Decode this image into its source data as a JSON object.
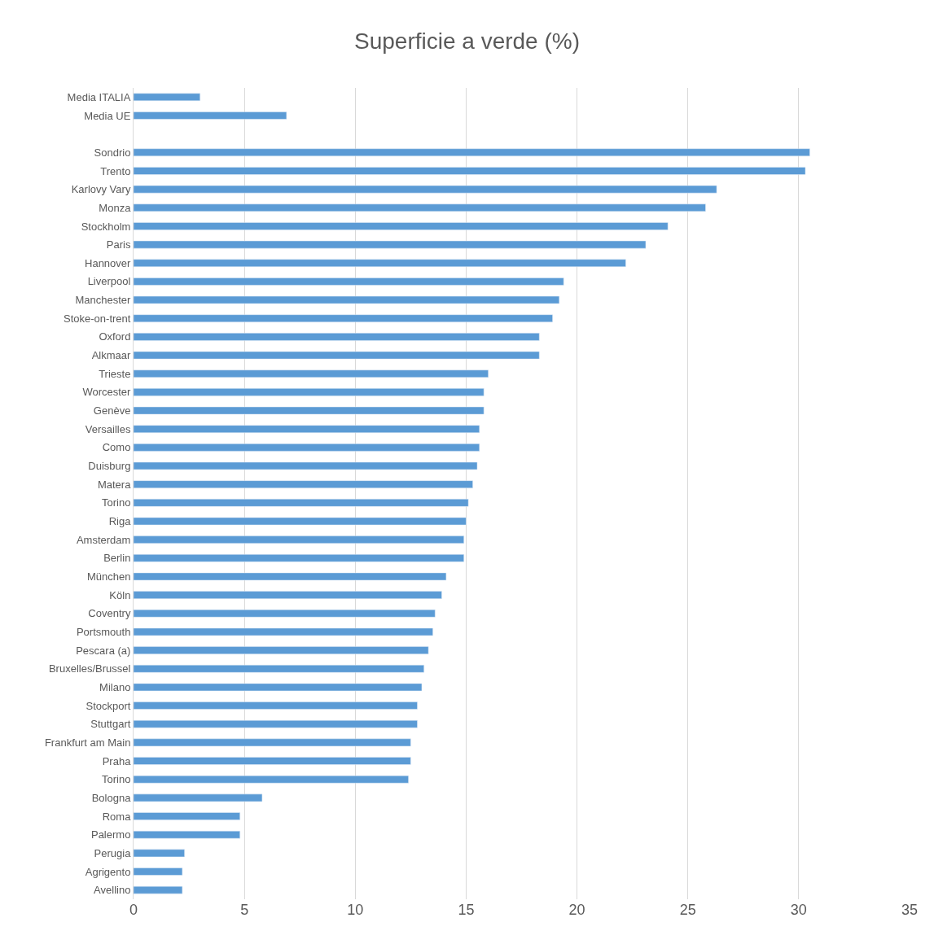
{
  "chart_data": {
    "type": "bar",
    "orientation": "horizontal",
    "title": "Superficie a verde (%)",
    "categories": [
      "Media ITALIA",
      "Media UE",
      null,
      "Sondrio",
      "Trento",
      "Karlovy Vary",
      "Monza",
      "Stockholm",
      "Paris",
      "Hannover",
      "Liverpool",
      "Manchester",
      "Stoke-on-trent",
      "Oxford",
      "Alkmaar",
      "Trieste",
      "Worcester",
      "Genève",
      "Versailles",
      "Como",
      "Duisburg",
      "Matera",
      "Torino",
      "Riga",
      "Amsterdam",
      "Berlin",
      "München",
      "Köln",
      "Coventry",
      "Portsmouth",
      "Pescara (a)",
      "Bruxelles/Brussel",
      "Milano",
      "Stockport",
      "Stuttgart",
      "Frankfurt am Main",
      "Praha",
      "Torino",
      "Bologna",
      "Roma",
      "Palermo",
      "Perugia",
      "Agrigento",
      "Avellino"
    ],
    "values": [
      3.0,
      6.9,
      null,
      30.5,
      30.3,
      26.3,
      25.8,
      24.1,
      23.1,
      22.2,
      19.4,
      19.2,
      18.9,
      18.3,
      18.3,
      16.0,
      15.8,
      15.8,
      15.6,
      15.6,
      15.5,
      15.3,
      15.1,
      15.0,
      14.9,
      14.9,
      14.1,
      13.9,
      13.6,
      13.5,
      13.3,
      13.1,
      13.0,
      12.8,
      12.8,
      12.5,
      12.5,
      12.4,
      5.8,
      4.8,
      4.8,
      2.3,
      2.2,
      2.2
    ],
    "color": "#5b9bd5",
    "xlim": [
      0,
      35
    ],
    "xticks": [
      0,
      5,
      10,
      15,
      20,
      25,
      30,
      35
    ],
    "grid": "x"
  }
}
